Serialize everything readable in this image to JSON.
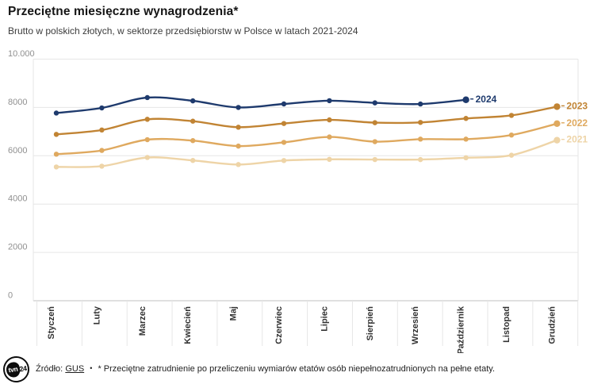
{
  "header": {
    "title": "Przeciętne miesięczne wynagrodzenia*",
    "subtitle": "Brutto w polskich złotych, w sektorze przedsiębiorstw w Polsce w latach 2021-2024"
  },
  "footer": {
    "source_label": "Źródło:",
    "source_link": "GUS",
    "separator": "•",
    "note": "* Przeciętne zatrudnienie po przeliczeniu wymiarów etatów osób niepełnozatrudnionych na pełne etaty.",
    "logo_main": "tvn",
    "logo_suffix": "24"
  },
  "chart_data": {
    "type": "line",
    "title": "Przeciętne miesięczne wynagrodzenia*",
    "subtitle": "Brutto w polskich złotych, w sektorze przedsiębiorstw w Polsce w latach 2021-2024",
    "categories": [
      "Styczeń",
      "Luty",
      "Marzec",
      "Kwiecień",
      "Maj",
      "Czerwiec",
      "Lipiec",
      "Sierpień",
      "Wrzesień",
      "Październik",
      "Listopad",
      "Grudzień"
    ],
    "series": [
      {
        "name": "2021",
        "color": "#eed4a7",
        "values": [
          5536.8,
          5568.82,
          5929.05,
          5805.72,
          5637.34,
          5802.42,
          5851.87,
          5843.75,
          5841.16,
          5917.15,
          6022.49,
          6644.39
        ]
      },
      {
        "name": "2022",
        "color": "#dfa95f",
        "values": [
          6064.24,
          6220.04,
          6665.64,
          6626.95,
          6399.59,
          6554.87,
          6778.63,
          6583.03,
          6687.81,
          6687.81,
          6857.96,
          7329.96
        ]
      },
      {
        "name": "2023",
        "color": "#c18434",
        "values": [
          6883.96,
          7065.56,
          7508.34,
          7430.65,
          7181.67,
          7335.2,
          7485.12,
          7368.97,
          7379.88,
          7544.98,
          7670.19,
          8032.96
        ]
      },
      {
        "name": "2024",
        "color": "#1e3a6d",
        "values": [
          7768.35,
          7978.99,
          8408.79,
          8271.99,
          7999.69,
          8144.83,
          8278.63,
          8189.74,
          8140.98,
          8316.57
        ]
      }
    ],
    "xlabel": "",
    "ylabel": "",
    "ylim": [
      0,
      10000
    ],
    "y_ticks": [
      {
        "value": 0,
        "label": "0"
      },
      {
        "value": 2000,
        "label": "2000"
      },
      {
        "value": 4000,
        "label": "4000"
      },
      {
        "value": 6000,
        "label": "6000"
      },
      {
        "value": 8000,
        "label": "8000"
      },
      {
        "value": 10000,
        "label": "10.000"
      }
    ],
    "grid": "horizontal",
    "legend_position": "line-end-labels",
    "colors": {
      "grid": "#e6e6e6",
      "zero_line": "#c2c2c2",
      "y_tick_text": "#909090",
      "x_tick_text": "#333333"
    }
  }
}
